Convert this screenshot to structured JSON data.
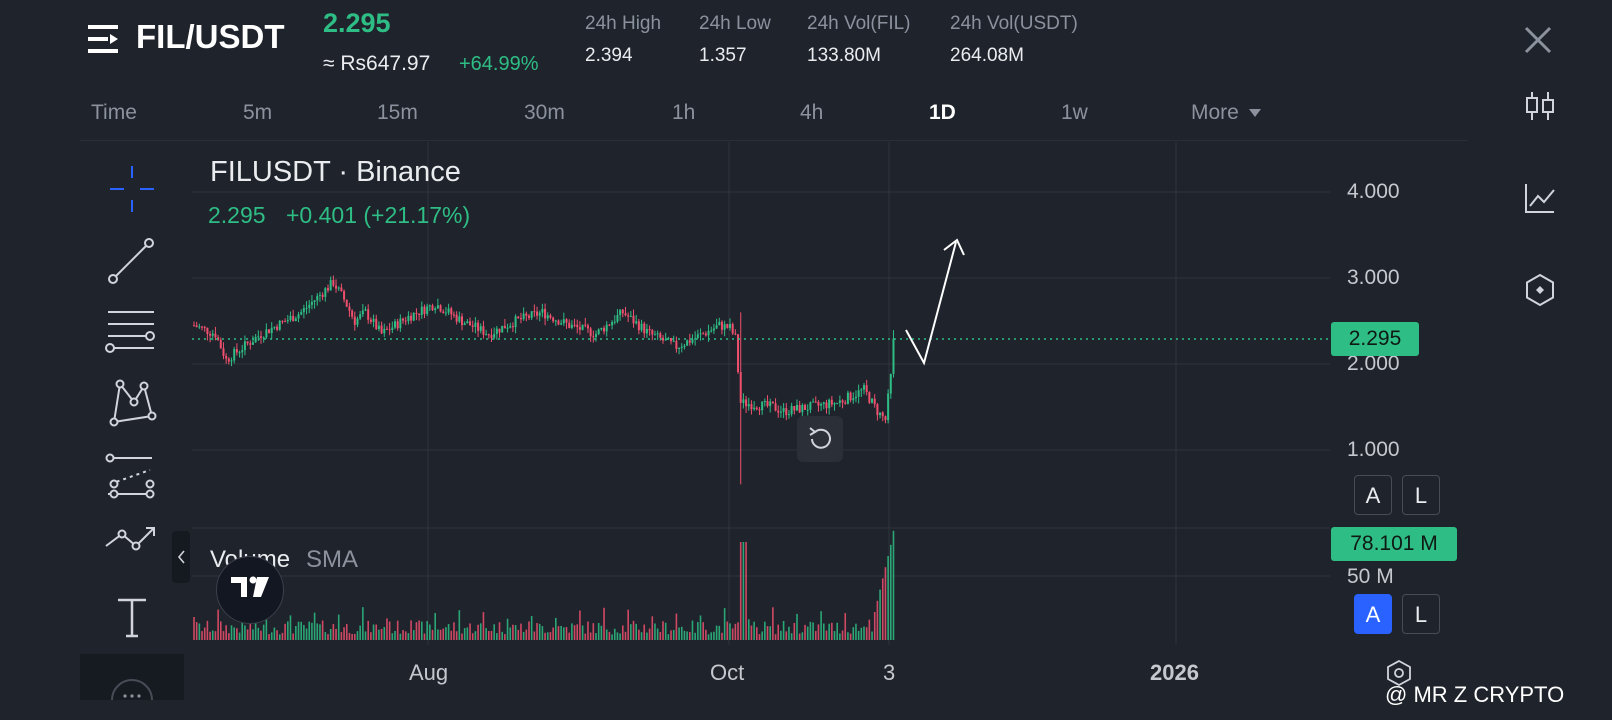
{
  "header": {
    "pair": "FIL/USDT",
    "last_price": "2.295",
    "fiat_price": "≈ Rs647.97",
    "percent_change": "+64.99%",
    "stats": [
      {
        "label": "24h High",
        "value": "2.394"
      },
      {
        "label": "24h Low",
        "value": "1.357"
      },
      {
        "label": "24h Vol(FIL)",
        "value": "133.80M"
      },
      {
        "label": "24h Vol(USDT)",
        "value": "264.08M"
      }
    ]
  },
  "timeframes": [
    "Time",
    "5m",
    "15m",
    "30m",
    "1h",
    "4h",
    "1D",
    "1w",
    "More"
  ],
  "active_timeframe": "1D",
  "chart": {
    "title": "FILUSDT · Binance",
    "ohlc_price": "2.295",
    "ohlc_change": "+0.401 (+21.17%)",
    "last_price_tag": "2.295",
    "volume_label": "Volume",
    "volume_sma_label": "SMA",
    "volume_tag": "78.101 M",
    "volume_axis_label": "50 M",
    "scale_auto": "A",
    "scale_log": "L"
  },
  "chart_data": {
    "type": "candlestick",
    "title": "FILUSDT · Binance",
    "y_ticks": [
      "4.000",
      "3.000",
      "2.000",
      "1.000"
    ],
    "ylim": [
      0.0,
      4.5
    ],
    "x_ticks": [
      "Aug",
      "Oct",
      "3",
      "2026"
    ],
    "last_price": 2.295,
    "volume_tick": "50 M",
    "volume_last": "78.101 M",
    "grid": true
  },
  "watermark": "@ MR Z CRYPTO",
  "colors": {
    "background": "#1f232b",
    "up": "#2ebd85",
    "down": "#f0506e",
    "accent": "#2962ff"
  },
  "icons": {
    "menu": "menu-icon",
    "close": "close-icon",
    "side": [
      "candles-icon",
      "indicator-chart-icon",
      "settings-hex-icon"
    ]
  }
}
